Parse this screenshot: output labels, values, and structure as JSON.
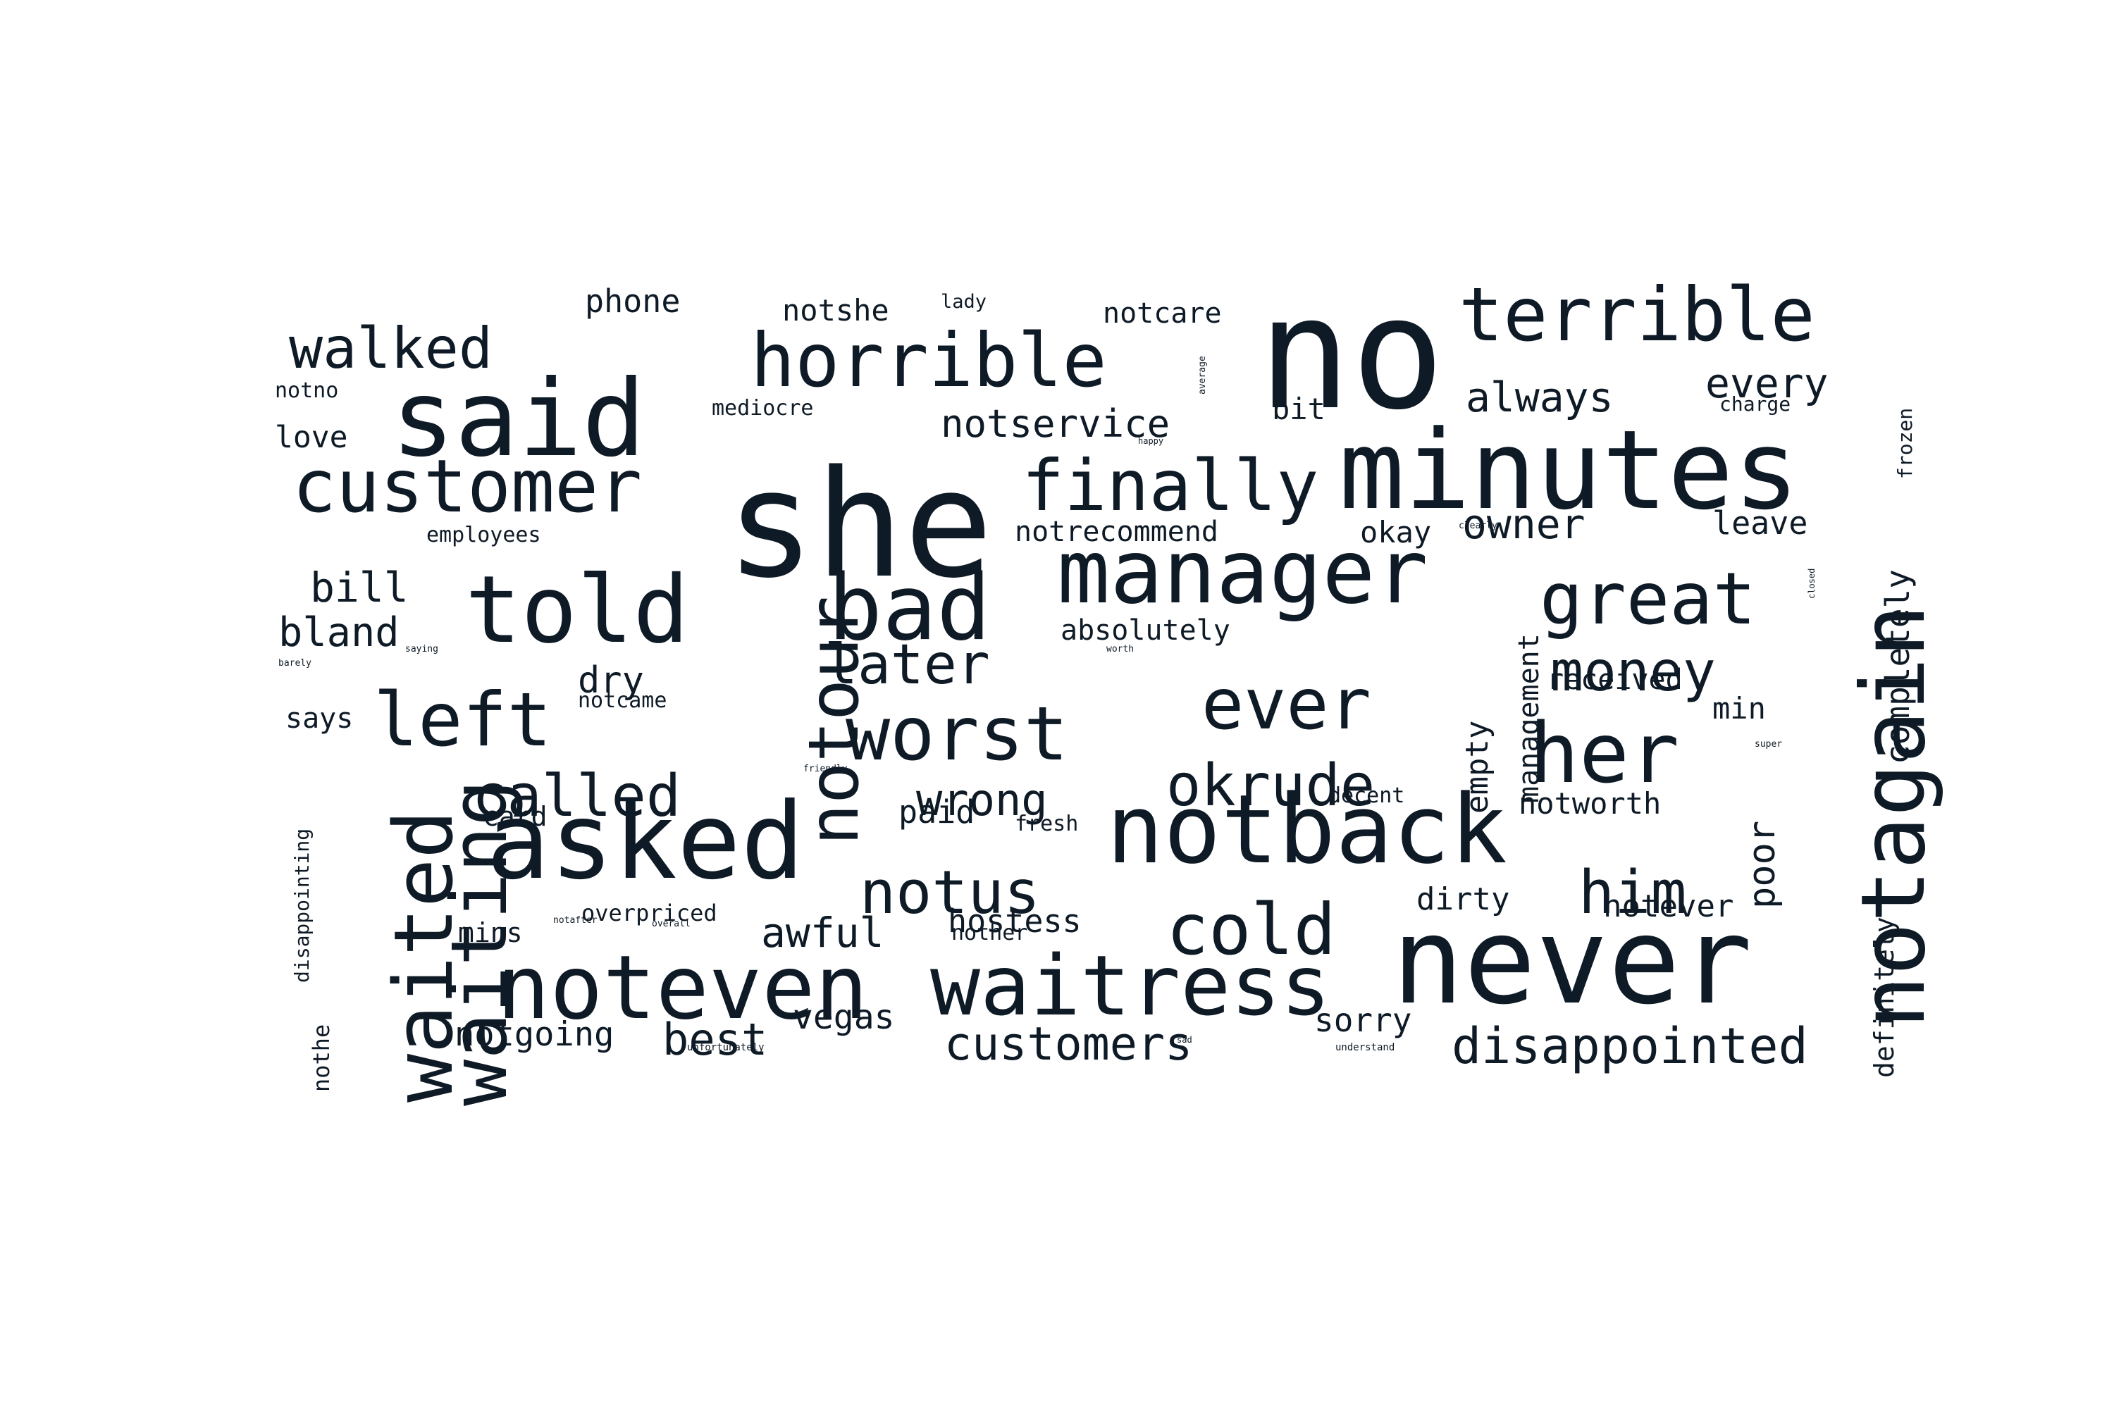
{
  "colors": {
    "background": "#ffffff",
    "text": "#0e1a26"
  },
  "words": [
    {
      "text": "no",
      "weight": 100,
      "orientation": "horizontal"
    },
    {
      "text": "she",
      "weight": 100,
      "orientation": "horizontal"
    },
    {
      "text": "minutes",
      "weight": 95,
      "orientation": "horizontal"
    },
    {
      "text": "never",
      "weight": 95,
      "orientation": "horizontal"
    },
    {
      "text": "said",
      "weight": 85,
      "orientation": "horizontal"
    },
    {
      "text": "asked",
      "weight": 85,
      "orientation": "horizontal"
    },
    {
      "text": "notback",
      "weight": 82,
      "orientation": "horizontal"
    },
    {
      "text": "manager",
      "weight": 80,
      "orientation": "horizontal"
    },
    {
      "text": "told",
      "weight": 78,
      "orientation": "horizontal"
    },
    {
      "text": "bad",
      "weight": 78,
      "orientation": "horizontal"
    },
    {
      "text": "noteven",
      "weight": 75,
      "orientation": "horizontal"
    },
    {
      "text": "waitress",
      "weight": 72,
      "orientation": "horizontal"
    },
    {
      "text": "terrible",
      "weight": 70,
      "orientation": "horizontal"
    },
    {
      "text": "her",
      "weight": 72,
      "orientation": "horizontal"
    },
    {
      "text": "notagain",
      "weight": 70,
      "orientation": "vertical"
    },
    {
      "text": "horrible",
      "weight": 65,
      "orientation": "horizontal"
    },
    {
      "text": "customer",
      "weight": 65,
      "orientation": "horizontal"
    },
    {
      "text": "worst",
      "weight": 65,
      "orientation": "horizontal"
    },
    {
      "text": "great",
      "weight": 62,
      "orientation": "horizontal"
    },
    {
      "text": "waited",
      "weight": 65,
      "orientation": "vertical"
    },
    {
      "text": "waiting",
      "weight": 62,
      "orientation": "vertical"
    },
    {
      "text": "finally",
      "weight": 60,
      "orientation": "horizontal"
    },
    {
      "text": "ever",
      "weight": 60,
      "orientation": "horizontal"
    },
    {
      "text": "left",
      "weight": 60,
      "orientation": "horizontal"
    },
    {
      "text": "cold",
      "weight": 60,
      "orientation": "horizontal"
    },
    {
      "text": "notour",
      "weight": 55,
      "orientation": "vertical"
    },
    {
      "text": "notus",
      "weight": 50,
      "orientation": "horizontal"
    },
    {
      "text": "okrude",
      "weight": 48,
      "orientation": "horizontal"
    },
    {
      "text": "called",
      "weight": 48,
      "orientation": "horizontal"
    },
    {
      "text": "him",
      "weight": 50,
      "orientation": "horizontal"
    },
    {
      "text": "walked",
      "weight": 48,
      "orientation": "horizontal"
    },
    {
      "text": "money",
      "weight": 48,
      "orientation": "horizontal"
    },
    {
      "text": "later",
      "weight": 45,
      "orientation": "horizontal"
    },
    {
      "text": "disappointed",
      "weight": 40,
      "orientation": "horizontal"
    },
    {
      "text": "customers",
      "weight": 38,
      "orientation": "horizontal"
    },
    {
      "text": "wrong",
      "weight": 36,
      "orientation": "horizontal"
    },
    {
      "text": "awful",
      "weight": 34,
      "orientation": "horizontal"
    },
    {
      "text": "best",
      "weight": 36,
      "orientation": "horizontal"
    },
    {
      "text": "always",
      "weight": 34,
      "orientation": "horizontal"
    },
    {
      "text": "every",
      "weight": 34,
      "orientation": "horizontal"
    },
    {
      "text": "owner",
      "weight": 34,
      "orientation": "horizontal"
    },
    {
      "text": "bland",
      "weight": 34,
      "orientation": "horizontal"
    },
    {
      "text": "bill",
      "weight": 33,
      "orientation": "horizontal"
    },
    {
      "text": "notservice",
      "weight": 32,
      "orientation": "horizontal"
    },
    {
      "text": "poor",
      "weight": 32,
      "orientation": "vertical"
    },
    {
      "text": "vegas",
      "weight": 28,
      "orientation": "horizontal"
    },
    {
      "text": "notgoing",
      "weight": 28,
      "orientation": "horizontal"
    },
    {
      "text": "dry",
      "weight": 30,
      "orientation": "horizontal"
    },
    {
      "text": "completely",
      "weight": 28,
      "orientation": "vertical"
    },
    {
      "text": "management",
      "weight": 25,
      "orientation": "vertical"
    },
    {
      "text": "empty",
      "weight": 26,
      "orientation": "vertical"
    },
    {
      "text": "hostess",
      "weight": 26,
      "orientation": "horizontal"
    },
    {
      "text": "sorry",
      "weight": 26,
      "orientation": "horizontal"
    },
    {
      "text": "notever",
      "weight": 26,
      "orientation": "horizontal"
    },
    {
      "text": "dirty",
      "weight": 25,
      "orientation": "horizontal"
    },
    {
      "text": "leave",
      "weight": 26,
      "orientation": "horizontal"
    },
    {
      "text": "received",
      "weight": 24,
      "orientation": "horizontal"
    },
    {
      "text": "min",
      "weight": 24,
      "orientation": "horizontal"
    },
    {
      "text": "notworth",
      "weight": 24,
      "orientation": "horizontal"
    },
    {
      "text": "paid",
      "weight": 26,
      "orientation": "horizontal"
    },
    {
      "text": "definitely",
      "weight": 22,
      "orientation": "vertical"
    },
    {
      "text": "absolutely",
      "weight": 24,
      "orientation": "horizontal"
    },
    {
      "text": "notrecommend",
      "weight": 24,
      "orientation": "horizontal"
    },
    {
      "text": "okay",
      "weight": 24,
      "orientation": "horizontal"
    },
    {
      "text": "phone",
      "weight": 26,
      "orientation": "horizontal"
    },
    {
      "text": "notshe",
      "weight": 24,
      "orientation": "horizontal"
    },
    {
      "text": "notcare",
      "weight": 24,
      "orientation": "horizontal"
    },
    {
      "text": "love",
      "weight": 24,
      "orientation": "horizontal"
    },
    {
      "text": "bit",
      "weight": 24,
      "orientation": "horizontal"
    },
    {
      "text": "says",
      "weight": 22,
      "orientation": "horizontal"
    },
    {
      "text": "card",
      "weight": 22,
      "orientation": "horizontal"
    },
    {
      "text": "mins",
      "weight": 22,
      "orientation": "horizontal"
    },
    {
      "text": "overpriced",
      "weight": 18,
      "orientation": "horizontal"
    },
    {
      "text": "nother",
      "weight": 18,
      "orientation": "horizontal"
    },
    {
      "text": "decent",
      "weight": 18,
      "orientation": "horizontal"
    },
    {
      "text": "fresh",
      "weight": 18,
      "orientation": "horizontal"
    },
    {
      "text": "notcame",
      "weight": 18,
      "orientation": "horizontal"
    },
    {
      "text": "employees",
      "weight": 18,
      "orientation": "horizontal"
    },
    {
      "text": "mediocre",
      "weight": 18,
      "orientation": "horizontal"
    },
    {
      "text": "notno",
      "weight": 18,
      "orientation": "horizontal"
    },
    {
      "text": "charge",
      "weight": 16,
      "orientation": "horizontal"
    },
    {
      "text": "frozen",
      "weight": 16,
      "orientation": "vertical"
    },
    {
      "text": "lady",
      "weight": 16,
      "orientation": "horizontal"
    },
    {
      "text": "disappointing",
      "weight": 16,
      "orientation": "vertical"
    },
    {
      "text": "nothe",
      "weight": 18,
      "orientation": "vertical"
    },
    {
      "text": "notafter",
      "weight": 8,
      "orientation": "horizontal"
    },
    {
      "text": "overall",
      "weight": 8,
      "orientation": "horizontal"
    },
    {
      "text": "friendly",
      "weight": 8,
      "orientation": "horizontal"
    },
    {
      "text": "saying",
      "weight": 8,
      "orientation": "horizontal"
    },
    {
      "text": "barely",
      "weight": 8,
      "orientation": "horizontal"
    },
    {
      "text": "worth",
      "weight": 8,
      "orientation": "horizontal"
    },
    {
      "text": "happy",
      "weight": 7,
      "orientation": "horizontal"
    },
    {
      "text": "average",
      "weight": 7,
      "orientation": "vertical"
    },
    {
      "text": "clearly",
      "weight": 8,
      "orientation": "horizontal"
    },
    {
      "text": "closed",
      "weight": 7,
      "orientation": "vertical"
    },
    {
      "text": "super",
      "weight": 8,
      "orientation": "horizontal"
    },
    {
      "text": "unfortunately",
      "weight": 8,
      "orientation": "horizontal"
    },
    {
      "text": "sad",
      "weight": 7,
      "orientation": "horizontal"
    },
    {
      "text": "understand",
      "weight": 8,
      "orientation": "horizontal"
    }
  ]
}
